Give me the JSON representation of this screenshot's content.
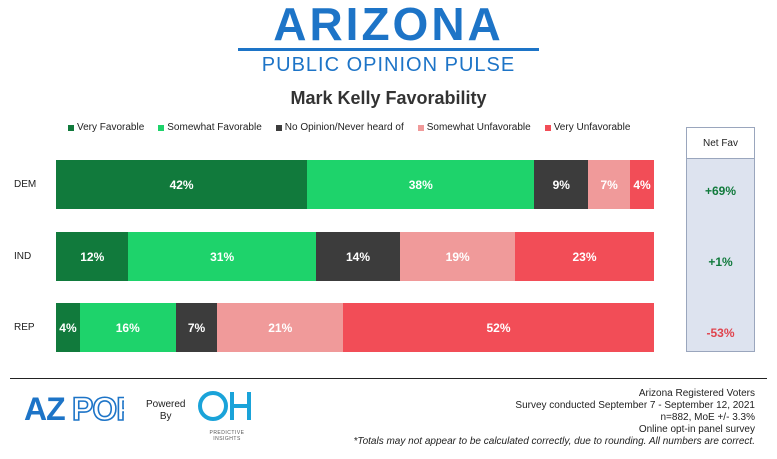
{
  "header": {
    "brand_title": "ARIZONA",
    "brand_subtitle": "PUBLIC OPINION PULSE"
  },
  "chart_data": {
    "type": "bar",
    "orientation": "horizontal",
    "stacked": true,
    "title": "Mark Kelly Favorability",
    "categories": [
      "DEM",
      "IND",
      "REP"
    ],
    "series": [
      {
        "name": "Very Favorable",
        "color": "#117a3c",
        "values": [
          42,
          12,
          4
        ],
        "labels": [
          "42%",
          "12%",
          "4%"
        ]
      },
      {
        "name": "Somewhat Favorable",
        "color": "#1ed36b",
        "values": [
          38,
          31,
          16
        ],
        "labels": [
          "38%",
          "31%",
          "16%"
        ]
      },
      {
        "name": "No Opinion/Never heard of",
        "color": "#3c3c3c",
        "values": [
          9,
          14,
          7
        ],
        "labels": [
          "9%",
          "14%",
          "7%"
        ]
      },
      {
        "name": "Somewhat Unfavorable",
        "color": "#f09a9a",
        "values": [
          7,
          19,
          21
        ],
        "labels": [
          "7%",
          "19%",
          "21%"
        ]
      },
      {
        "name": "Very Unfavorable",
        "color": "#f24d57",
        "values": [
          4,
          23,
          52
        ],
        "labels": [
          "4%",
          "23%",
          "52%"
        ]
      }
    ],
    "legend_position": "top",
    "net_fav": {
      "header": "Net Fav",
      "values": [
        "+69%",
        "+1%",
        "-53%"
      ],
      "colors": [
        "#117a3c",
        "#117a3c",
        "#e0434d"
      ]
    }
  },
  "footer": {
    "azpop_logo_text": "AZPOP",
    "powered_line1": "Powered",
    "powered_line2": "By",
    "oh_logo_text": "OH",
    "oh_logo_sub": "PREDICTIVE INSIGHTS",
    "notes": [
      "Arizona Registered Voters",
      "Survey conducted September 7 - September 12, 2021",
      "n=882, MoE +/- 3.3%",
      "Online opt-in panel survey"
    ],
    "disclaimer": "*Totals may not appear to be calculated correctly, due to rounding. All numbers are correct."
  }
}
